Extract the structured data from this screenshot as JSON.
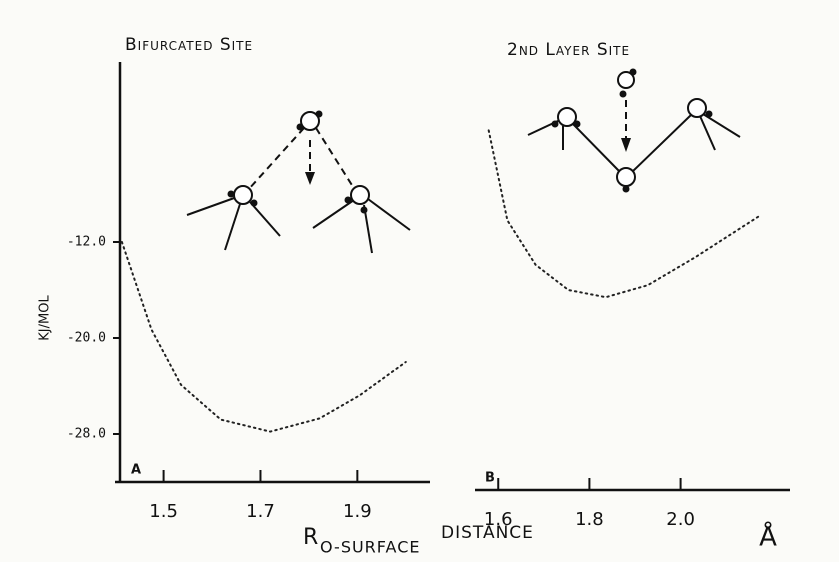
{
  "chart_data": [
    {
      "type": "line",
      "panel": "A",
      "title": "Bifurcated Site",
      "y_label": "KJ/MOL",
      "x_label": "R",
      "x_label_subscript": "O-SURFACE",
      "x_label_tail": "DISTANCE",
      "x_unit": "Å",
      "xlim": [
        1.41,
        2.05
      ],
      "xticks": [
        1.5,
        1.7,
        1.9
      ],
      "ylim": [
        -32,
        3
      ],
      "yticks": [
        {
          "value": -12,
          "label": "-12.0"
        },
        {
          "value": -20,
          "label": "-20.0"
        },
        {
          "value": -28,
          "label": "-28.0"
        }
      ],
      "line_style": "dotted",
      "color": "#222",
      "x": [
        1.414,
        1.475,
        1.536,
        1.618,
        1.72,
        1.822,
        1.904,
        2.0
      ],
      "values": [
        -12,
        -19.3,
        -23.9,
        -26.8,
        -27.8,
        -26.7,
        -24.8,
        -22.0
      ]
    },
    {
      "type": "line",
      "panel": "B",
      "title": "2nd Layer Site",
      "xlim": [
        1.56,
        2.24
      ],
      "xticks": [
        1.6,
        1.8,
        {
          "value": 2,
          "label": "2.0"
        }
      ],
      "ylim": [
        -32,
        3
      ],
      "line_style": "dotted",
      "color": "#222",
      "x": [
        1.579,
        1.62,
        1.682,
        1.754,
        1.836,
        1.928,
        2.031,
        2.17
      ],
      "values": [
        -2.7,
        -10.2,
        -13.9,
        -16.0,
        -16.6,
        -15.6,
        -13.3,
        -9.9
      ]
    }
  ]
}
